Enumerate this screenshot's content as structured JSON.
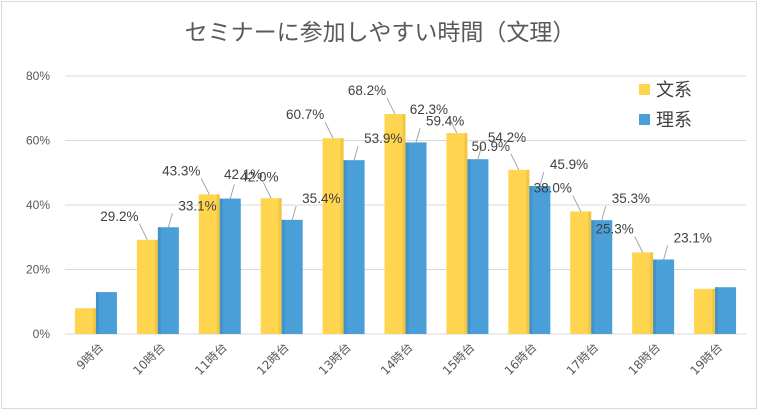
{
  "chart_data": {
    "type": "bar",
    "title": "セミナーに参加しやすい時間（文理）",
    "categories": [
      "9時台",
      "10時台",
      "11時台",
      "12時台",
      "13時台",
      "14時台",
      "15時台",
      "16時台",
      "17時台",
      "18時台",
      "19時台"
    ],
    "series": [
      {
        "name": "文系",
        "color": "#ffd54f",
        "values": [
          8.0,
          29.2,
          43.3,
          42.1,
          60.7,
          68.2,
          62.3,
          50.9,
          38.0,
          25.3,
          14.0
        ],
        "labels": [
          "",
          "29.2%",
          "43.3%",
          "42.1%",
          "60.7%",
          "68.2%",
          "62.3%",
          "50.9%",
          "38.0%",
          "25.3%",
          ""
        ]
      },
      {
        "name": "理系",
        "color": "#4a9fd8",
        "values": [
          13.0,
          33.1,
          42.0,
          35.4,
          53.9,
          59.4,
          54.2,
          45.9,
          35.3,
          23.1,
          14.5
        ],
        "labels": [
          "",
          "33.1%",
          "42.0%",
          "35.4%",
          "53.9%",
          "59.4%",
          "54.2%",
          "45.9%",
          "35.3%",
          "23.1%",
          ""
        ]
      }
    ],
    "yticks": [
      "0%",
      "20%",
      "40%",
      "60%",
      "80%"
    ],
    "ylim": [
      0,
      80
    ],
    "legend_position": "top-right",
    "grid": true,
    "xlabel": "",
    "ylabel": ""
  }
}
